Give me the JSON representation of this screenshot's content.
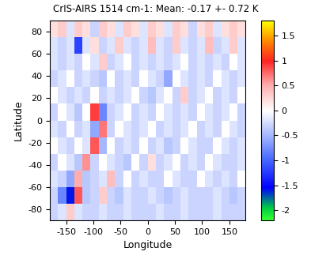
{
  "chart_data": {
    "type": "heatmap",
    "title": "CrIS-AIRS 1514 cm-1: Mean: -0.17 +- 0.72 K",
    "x_label": "Longitude",
    "y_label": "Latitude",
    "xlim": [
      -180,
      180
    ],
    "xticks": [
      -150,
      -100,
      -50,
      0,
      50,
      100,
      150
    ],
    "ylim": [
      -90,
      90
    ],
    "yticks": [
      -80,
      -60,
      -40,
      -20,
      0,
      20,
      40,
      60,
      80
    ],
    "x_edges": [
      -180,
      -165,
      -150,
      -135,
      -120,
      -105,
      -90,
      -75,
      -60,
      -45,
      -30,
      -15,
      0,
      15,
      30,
      45,
      60,
      75,
      90,
      105,
      120,
      135,
      150,
      165,
      180
    ],
    "y_edges": [
      -90,
      -75,
      -60,
      -45,
      -30,
      -15,
      0,
      15,
      30,
      45,
      60,
      75,
      90
    ],
    "cells": [
      [
        -0.3,
        -0.2,
        0.3,
        -0.2,
        -0.3,
        -0.3,
        -0.2,
        -0.3,
        -0.3,
        -0.2,
        -0.3,
        -0.3,
        -0.3,
        -0.2,
        -0.3,
        -0.3,
        -0.2,
        -0.3,
        -0.3,
        -0.3,
        -0.2,
        -0.3,
        -0.3,
        -0.3
      ],
      [
        -0.3,
        -0.8,
        -1.6,
        0.8,
        -0.4,
        -0.3,
        0.3,
        -0.3,
        -0.4,
        -0.2,
        -0.3,
        -0.3,
        -0.2,
        -0.3,
        -0.4,
        -0.3,
        -0.2,
        -0.3,
        -0.3,
        -0.3,
        -0.2,
        -0.3,
        -0.4,
        -0.3
      ],
      [
        -0.2,
        -0.3,
        -0.6,
        0.5,
        -0.4,
        -0.3,
        -0.2,
        0.4,
        -0.3,
        null,
        -0.3,
        -0.2,
        -0.3,
        -0.3,
        null,
        -0.2,
        -0.3,
        -0.3,
        null,
        -0.2,
        -0.3,
        -0.2,
        -0.3,
        null
      ],
      [
        -0.3,
        null,
        -0.2,
        -0.4,
        0.6,
        -0.3,
        null,
        -0.2,
        -0.3,
        -0.4,
        null,
        -0.3,
        0.2,
        -0.3,
        -0.2,
        null,
        -0.3,
        -0.2,
        -0.3,
        null,
        -0.2,
        -0.3,
        -0.3,
        -0.2
      ],
      [
        null,
        -0.2,
        -0.3,
        null,
        -0.2,
        0.8,
        -0.5,
        null,
        -0.3,
        -0.2,
        -0.3,
        null,
        -0.3,
        -0.2,
        -0.4,
        -0.3,
        null,
        -0.2,
        -0.3,
        -0.3,
        null,
        -0.2,
        -0.3,
        -0.2
      ],
      [
        -0.2,
        -0.3,
        null,
        -0.3,
        -0.2,
        -0.6,
        0.7,
        -0.3,
        null,
        -0.2,
        -0.3,
        -0.2,
        null,
        -0.3,
        -0.2,
        -0.3,
        -0.2,
        null,
        -0.3,
        -0.2,
        -0.3,
        null,
        -0.2,
        -0.3
      ],
      [
        -0.3,
        null,
        -0.2,
        -0.4,
        null,
        0.9,
        -0.8,
        -0.3,
        -0.2,
        null,
        -0.3,
        -0.2,
        -0.3,
        null,
        -0.2,
        -0.3,
        -0.2,
        -0.3,
        null,
        -0.2,
        -0.3,
        -0.2,
        null,
        -0.3
      ],
      [
        null,
        -0.2,
        -0.3,
        -0.2,
        -0.3,
        null,
        -0.3,
        -0.2,
        -0.3,
        -0.2,
        null,
        -0.3,
        -0.4,
        -0.2,
        null,
        -0.3,
        0.3,
        -0.3,
        -0.2,
        null,
        -0.3,
        -0.2,
        -0.3,
        null
      ],
      [
        -0.3,
        -0.2,
        null,
        -0.3,
        -0.2,
        -0.3,
        -0.4,
        null,
        -0.3,
        -0.2,
        -0.3,
        null,
        -0.2,
        -0.3,
        -0.6,
        null,
        -0.2,
        -0.3,
        -0.2,
        -0.3,
        null,
        -0.2,
        -0.3,
        -0.2
      ],
      [
        -0.2,
        -0.3,
        -0.2,
        -0.3,
        null,
        -0.2,
        0.3,
        -0.3,
        -0.2,
        null,
        -0.3,
        -0.2,
        -0.3,
        -0.2,
        -0.3,
        -0.2,
        null,
        -0.3,
        -0.2,
        -0.3,
        -0.2,
        -0.3,
        null,
        -0.2
      ],
      [
        -0.2,
        -0.3,
        -0.2,
        -1.2,
        -0.2,
        0.2,
        -0.3,
        -0.2,
        0.3,
        -0.2,
        -0.3,
        -0.2,
        0.4,
        -0.2,
        -0.3,
        0.3,
        -0.2,
        -0.3,
        -0.2,
        0.4,
        -0.3,
        -0.2,
        0.3,
        -0.2
      ],
      [
        0.2,
        0.3,
        -0.2,
        0.3,
        0.2,
        -0.3,
        0.3,
        0.2,
        -0.2,
        0.3,
        0.2,
        -0.2,
        0.3,
        0.2,
        -0.2,
        0.3,
        0.2,
        -0.3,
        0.2,
        0.3,
        -0.2,
        0.2,
        0.3,
        0.2
      ]
    ],
    "colorbar": {
      "lim": [
        -2.2,
        1.8
      ],
      "ticks": [
        -2,
        -1.5,
        -1,
        -0.5,
        0,
        0.5,
        1,
        1.5
      ]
    }
  }
}
